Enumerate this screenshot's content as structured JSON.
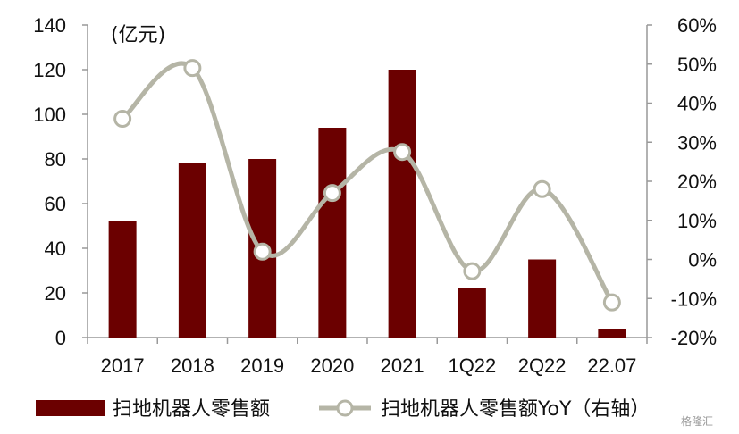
{
  "colors": {
    "bar": "#6b0000",
    "line": "#b5b5a6",
    "marker_fill": "#ffffff",
    "axis": "#999999",
    "text": "#111111"
  },
  "watermark": "格隆汇",
  "chart_data": {
    "type": "bar+line",
    "unit_label": "(亿元)",
    "categories": [
      "2017",
      "2018",
      "2019",
      "2020",
      "2021",
      "1Q22",
      "2Q22",
      "22.07"
    ],
    "series": [
      {
        "name": "扫地机器人零售额",
        "type": "bar",
        "axis": "left",
        "values": [
          52,
          78,
          80,
          94,
          120,
          22,
          35,
          4
        ]
      },
      {
        "name": "扫地机器人零售额YoY（右轴）",
        "type": "line",
        "axis": "right",
        "smooth": true,
        "values": [
          36,
          49,
          2,
          17,
          27.5,
          -3,
          18,
          -11
        ]
      }
    ],
    "y_left": {
      "range": [
        0,
        140
      ],
      "ticks": [
        "0",
        "20",
        "40",
        "60",
        "80",
        "100",
        "120",
        "140"
      ]
    },
    "y_right": {
      "range": [
        -20,
        60
      ],
      "ticks": [
        "-20%",
        "-10%",
        "0%",
        "10%",
        "20%",
        "30%",
        "40%",
        "50%",
        "60%"
      ]
    },
    "grid": false,
    "legend_position": "bottom"
  }
}
